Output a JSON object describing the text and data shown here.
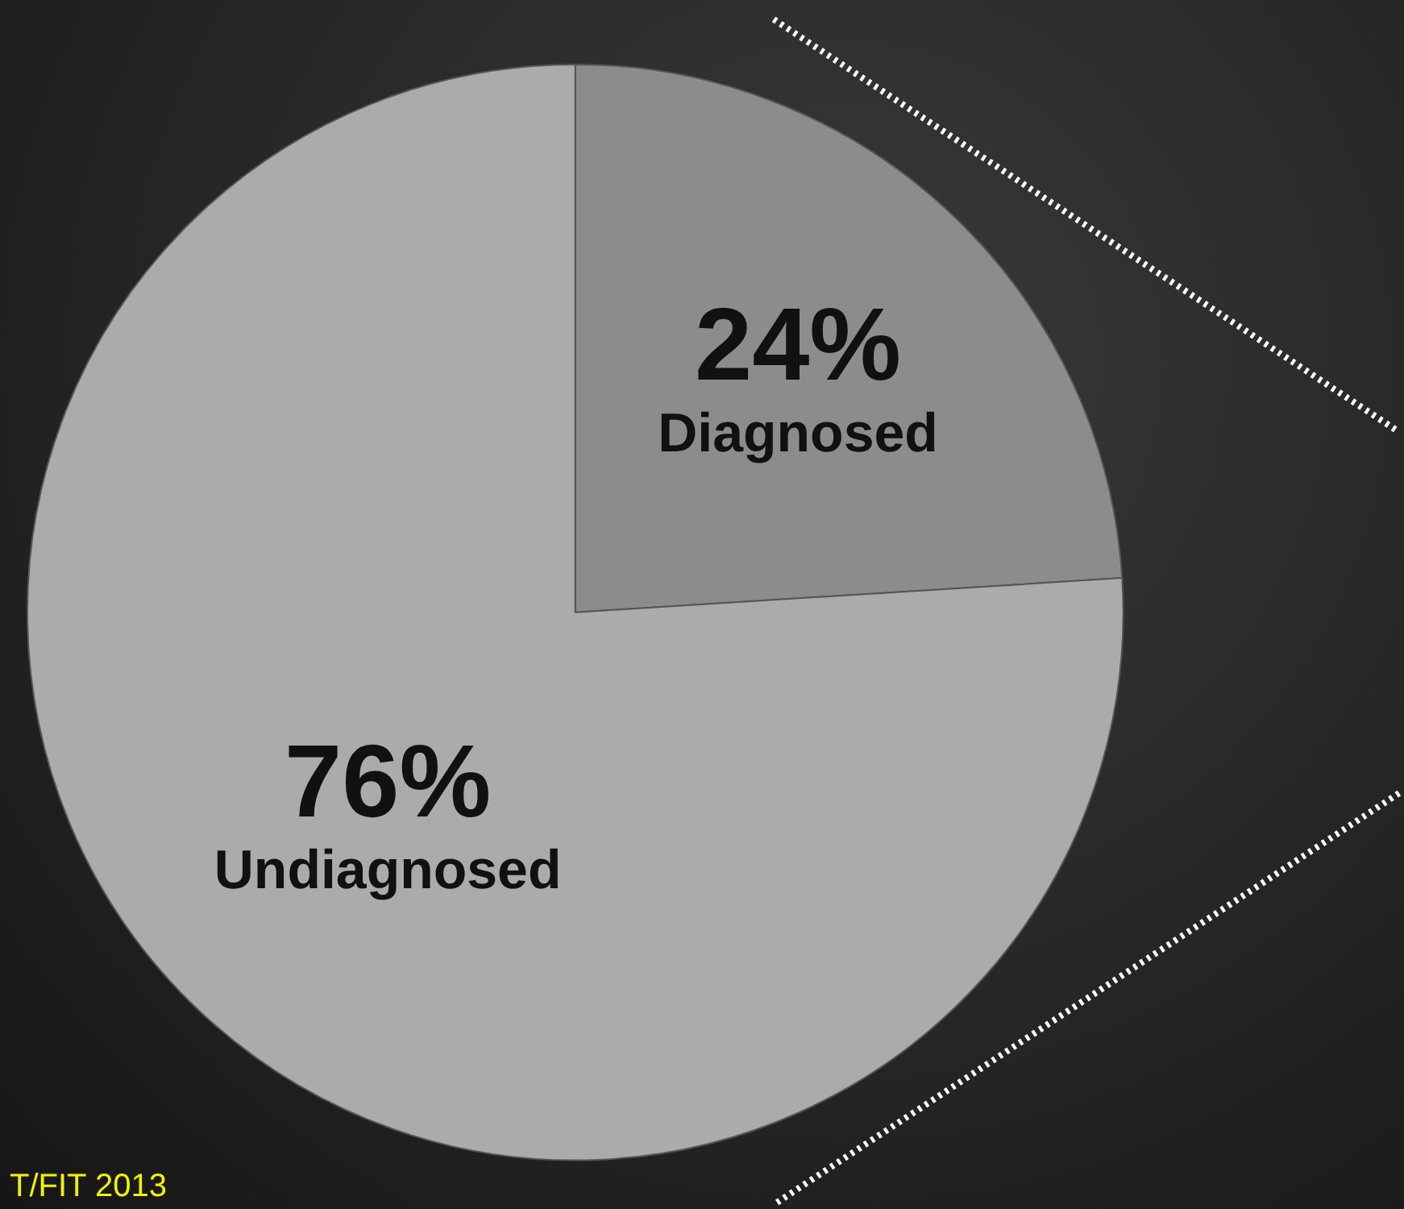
{
  "chart_data": {
    "type": "pie",
    "categories": [
      "Diagnosed",
      "Undiagnosed"
    ],
    "values": [
      24,
      76
    ],
    "value_labels": [
      "24%",
      "76%"
    ],
    "colors": [
      "#8c8c8c",
      "#ababab"
    ],
    "annotations": [
      "T/FIT 2013"
    ],
    "legend": false
  }
}
